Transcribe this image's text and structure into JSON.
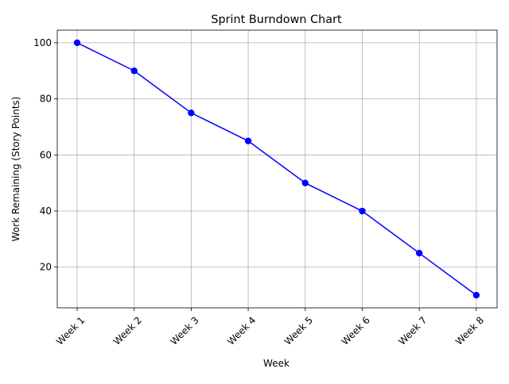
{
  "chart_data": {
    "type": "line",
    "title": "Sprint Burndown Chart",
    "xlabel": "Week",
    "ylabel": "Work Remaining (Story Points)",
    "categories": [
      "Week 1",
      "Week 2",
      "Week 3",
      "Week 4",
      "Week 5",
      "Week 6",
      "Week 7",
      "Week 8"
    ],
    "series": [
      {
        "values": [
          100,
          90,
          75,
          65,
          50,
          40,
          25,
          10
        ],
        "color": "#0000ff",
        "marker": "circle"
      }
    ],
    "yticks": [
      20,
      40,
      60,
      80,
      100
    ],
    "ylim": [
      5.5,
      104.5
    ],
    "grid": true,
    "legend": false,
    "x_tick_rotation": 45
  }
}
